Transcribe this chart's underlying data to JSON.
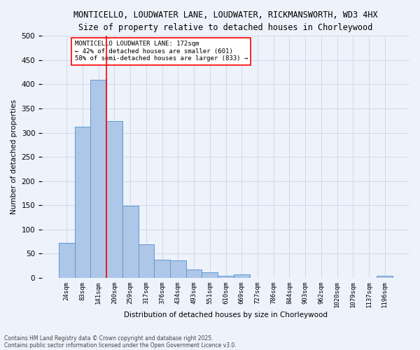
{
  "title1": "MONTICELLO, LOUDWATER LANE, LOUDWATER, RICKMANSWORTH, WD3 4HX",
  "title2": "Size of property relative to detached houses in Chorleywood",
  "xlabel": "Distribution of detached houses by size in Chorleywood",
  "ylabel": "Number of detached properties",
  "bin_labels": [
    "24sqm",
    "83sqm",
    "141sqm",
    "200sqm",
    "259sqm",
    "317sqm",
    "376sqm",
    "434sqm",
    "493sqm",
    "551sqm",
    "610sqm",
    "669sqm",
    "727sqm",
    "786sqm",
    "844sqm",
    "903sqm",
    "962sqm",
    "1020sqm",
    "1079sqm",
    "1137sqm",
    "1196sqm"
  ],
  "bar_values": [
    72,
    312,
    410,
    324,
    149,
    70,
    38,
    36,
    18,
    11,
    5,
    7,
    0,
    0,
    0,
    0,
    0,
    0,
    0,
    0,
    5
  ],
  "bar_color": "#aec6e8",
  "bar_edge_color": "#5b9bd5",
  "vline_x": 2.5,
  "vline_color": "red",
  "annotation_title": "MONTICELLO LOUDWATER LANE: 172sqm",
  "annotation_line1": "← 42% of detached houses are smaller (601)",
  "annotation_line2": "58% of semi-detached houses are larger (833) →",
  "annotation_box_color": "white",
  "annotation_box_edge": "red",
  "ylim": [
    0,
    500
  ],
  "yticks": [
    0,
    50,
    100,
    150,
    200,
    250,
    300,
    350,
    400,
    450,
    500
  ],
  "footer1": "Contains HM Land Registry data © Crown copyright and database right 2025.",
  "footer2": "Contains public sector information licensed under the Open Government Licence v3.0.",
  "bg_color": "#eef2fb"
}
